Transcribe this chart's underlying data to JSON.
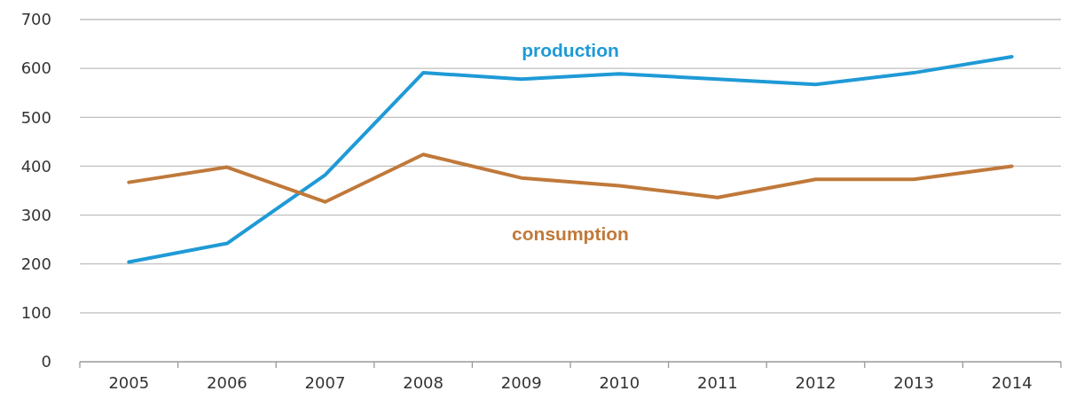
{
  "chart_data": {
    "type": "line",
    "categories": [
      "2005",
      "2006",
      "2007",
      "2008",
      "2009",
      "2010",
      "2011",
      "2012",
      "2013",
      "2014"
    ],
    "series": [
      {
        "name": "production",
        "color": "#1f9ad6",
        "values": [
          204,
          242,
          382,
          591,
          578,
          589,
          578,
          567,
          591,
          624
        ]
      },
      {
        "name": "consumption",
        "color": "#c0793a",
        "values": [
          367,
          398,
          327,
          424,
          376,
          360,
          336,
          373,
          373,
          400
        ]
      }
    ],
    "ylim": [
      0,
      700
    ],
    "yticks": [
      0,
      100,
      200,
      300,
      400,
      500,
      600,
      700
    ],
    "grid": "y",
    "legend": false,
    "marker": "none",
    "line_style": "solid"
  }
}
